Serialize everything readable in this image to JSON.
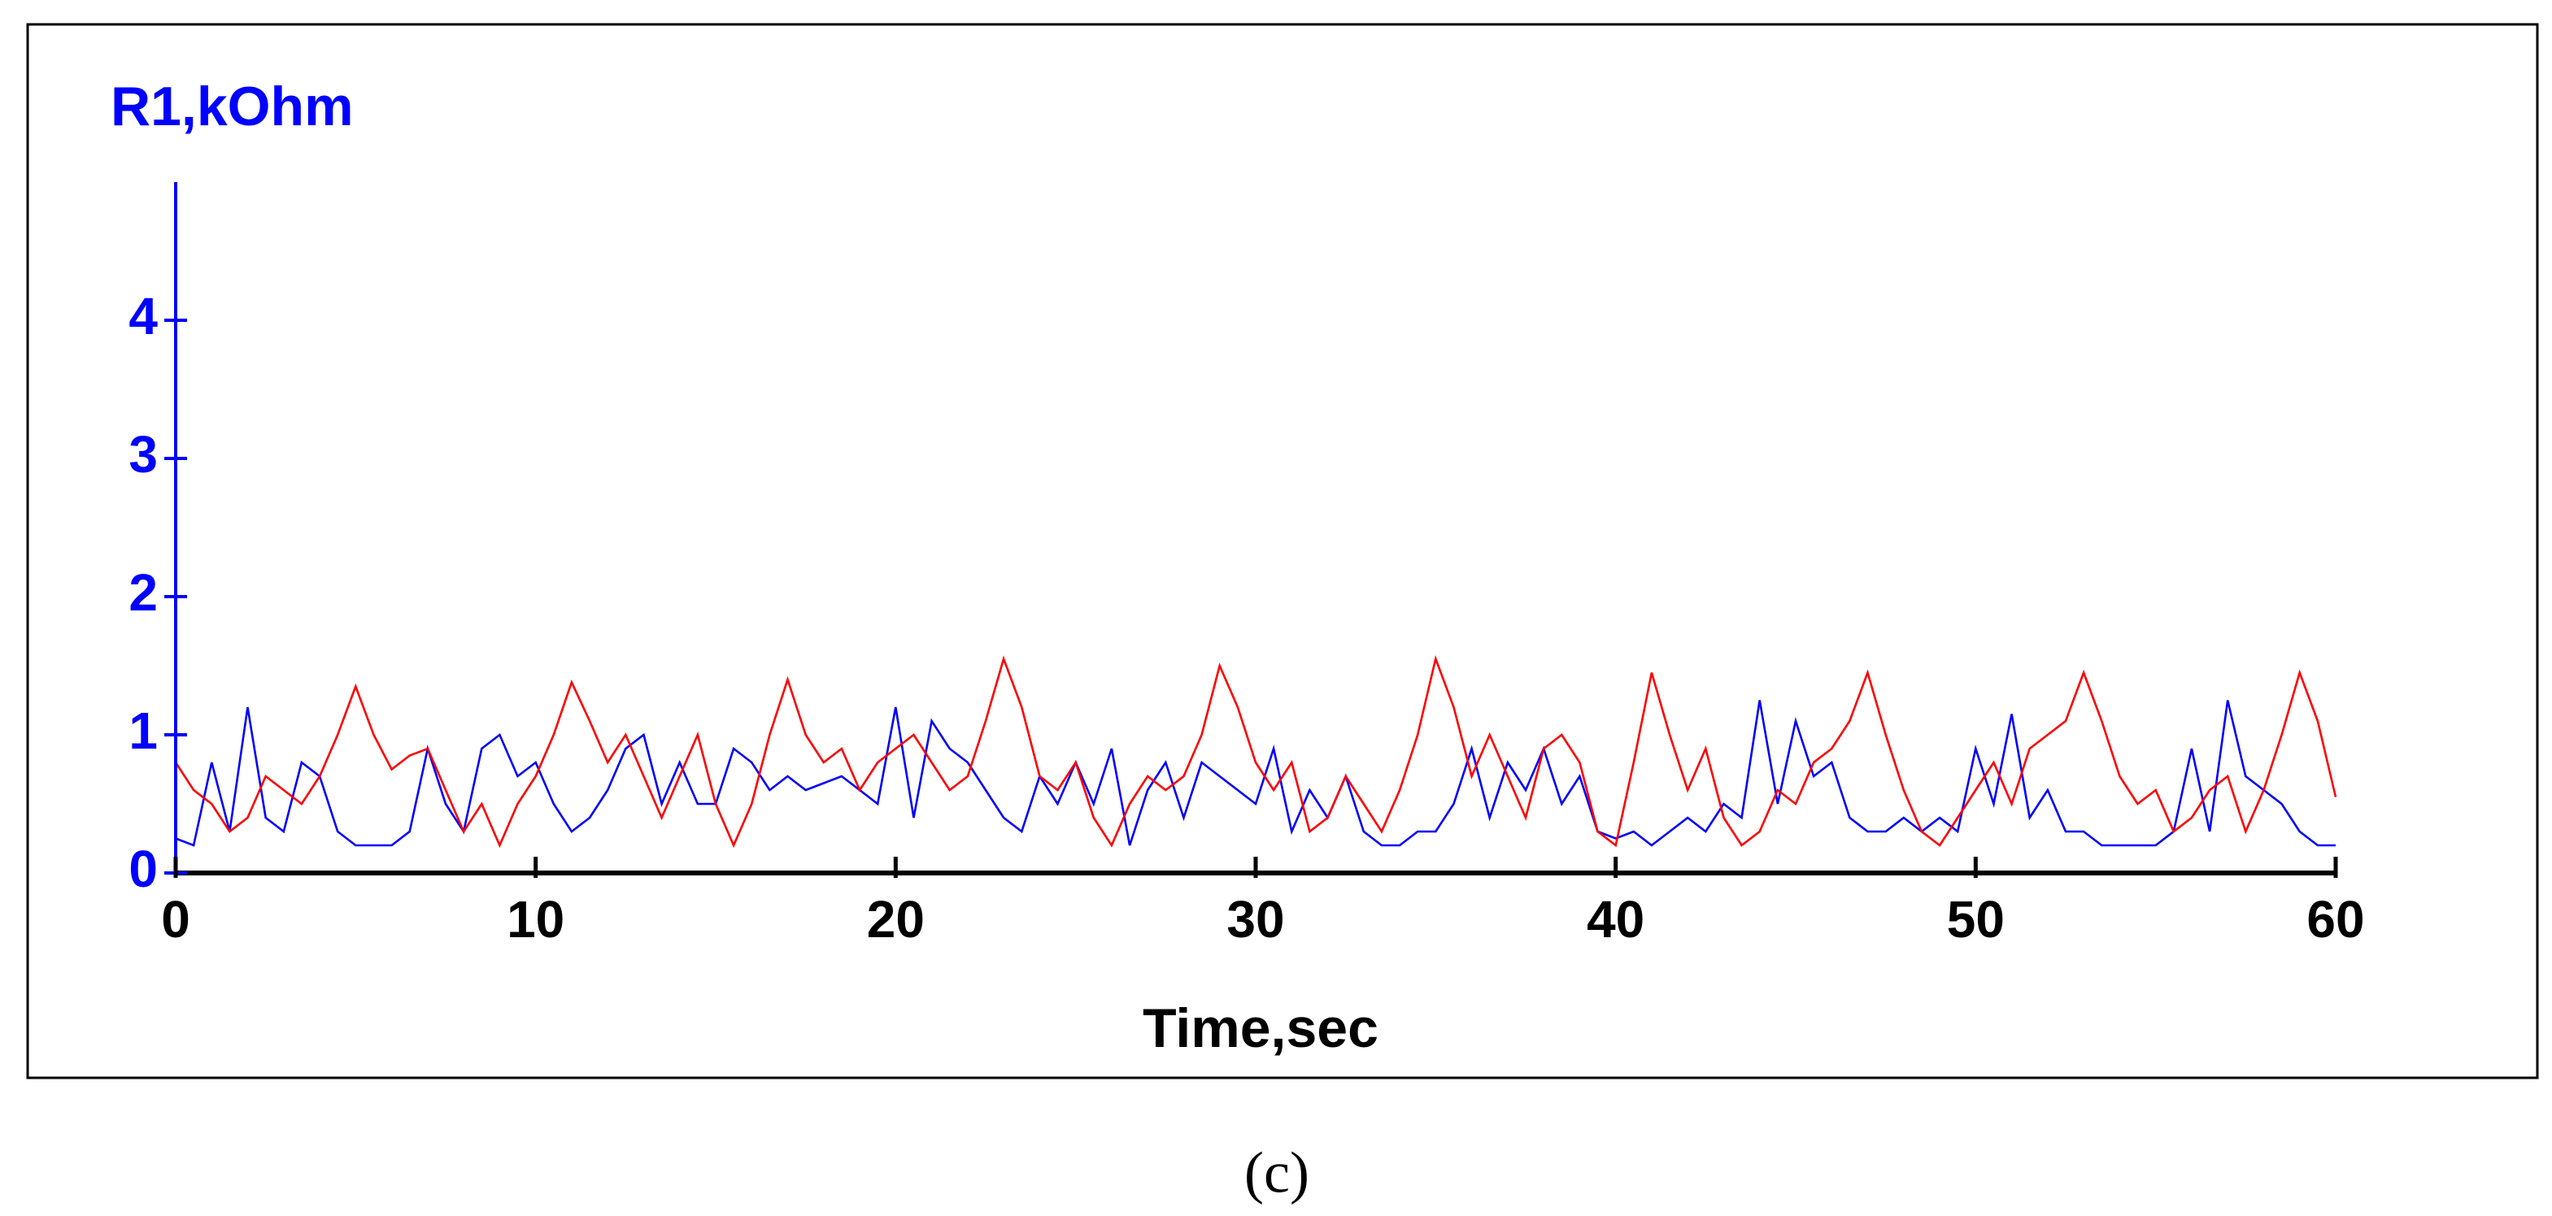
{
  "chart_data": {
    "type": "line",
    "ylabel": "R1,kOhm",
    "xlabel": "Time,sec",
    "caption": "(c)",
    "xlim": [
      0,
      60
    ],
    "xticks": [
      0,
      10,
      20,
      30,
      40,
      50,
      60
    ],
    "ylim": [
      0,
      5
    ],
    "yticks": [
      0,
      1,
      2,
      3,
      4
    ],
    "x": [
      0,
      0.5,
      1,
      1.5,
      2,
      2.5,
      3,
      3.5,
      4,
      4.5,
      5,
      5.5,
      6,
      6.5,
      7,
      7.5,
      8,
      8.5,
      9,
      9.5,
      10,
      10.5,
      11,
      11.5,
      12,
      12.5,
      13,
      13.5,
      14,
      14.5,
      15,
      15.5,
      16,
      16.5,
      17,
      17.5,
      18,
      18.5,
      19,
      19.5,
      20,
      20.5,
      21,
      21.5,
      22,
      22.5,
      23,
      23.5,
      24,
      24.5,
      25,
      25.5,
      26,
      26.5,
      27,
      27.5,
      28,
      28.5,
      29,
      29.5,
      30,
      30.5,
      31,
      31.5,
      32,
      32.5,
      33,
      33.5,
      34,
      34.5,
      35,
      35.5,
      36,
      36.5,
      37,
      37.5,
      38,
      38.5,
      39,
      39.5,
      40,
      40.5,
      41,
      41.5,
      42,
      42.5,
      43,
      43.5,
      44,
      44.5,
      45,
      45.5,
      46,
      46.5,
      47,
      47.5,
      48,
      48.5,
      49,
      49.5,
      50,
      50.5,
      51,
      51.5,
      52,
      52.5,
      53,
      53.5,
      54,
      54.5,
      55,
      55.5,
      56,
      56.5,
      57,
      57.5,
      58,
      58.5,
      59,
      59.5,
      60
    ],
    "series": [
      {
        "color": "#0000ff",
        "values": [
          0.25,
          0.2,
          0.8,
          0.3,
          1.2,
          0.4,
          0.3,
          0.8,
          0.7,
          0.3,
          0.2,
          0.2,
          0.2,
          0.3,
          0.9,
          0.5,
          0.3,
          0.9,
          1.0,
          0.7,
          0.8,
          0.5,
          0.3,
          0.4,
          0.6,
          0.9,
          1.0,
          0.5,
          0.8,
          0.5,
          0.5,
          0.9,
          0.8,
          0.6,
          0.7,
          0.6,
          0.65,
          0.7,
          0.6,
          0.5,
          1.2,
          0.4,
          1.1,
          0.9,
          0.8,
          0.6,
          0.4,
          0.3,
          0.7,
          0.5,
          0.8,
          0.5,
          0.9,
          0.2,
          0.6,
          0.8,
          0.4,
          0.8,
          0.7,
          0.6,
          0.5,
          0.9,
          0.3,
          0.6,
          0.4,
          0.7,
          0.3,
          0.2,
          0.2,
          0.3,
          0.3,
          0.5,
          0.9,
          0.4,
          0.8,
          0.6,
          0.9,
          0.5,
          0.7,
          0.3,
          0.25,
          0.3,
          0.2,
          0.3,
          0.4,
          0.3,
          0.5,
          0.4,
          1.25,
          0.5,
          1.1,
          0.7,
          0.8,
          0.4,
          0.3,
          0.3,
          0.4,
          0.3,
          0.4,
          0.3,
          0.9,
          0.5,
          1.15,
          0.4,
          0.6,
          0.3,
          0.3,
          0.2,
          0.2,
          0.2,
          0.2,
          0.3,
          0.9,
          0.3,
          1.25,
          0.7,
          0.6,
          0.5,
          0.3,
          0.2,
          0.2
        ]
      },
      {
        "color": "#ff0000",
        "values": [
          0.8,
          0.6,
          0.5,
          0.3,
          0.4,
          0.7,
          0.6,
          0.5,
          0.7,
          1.0,
          1.35,
          1.0,
          0.75,
          0.85,
          0.9,
          0.6,
          0.3,
          0.5,
          0.2,
          0.5,
          0.7,
          1.0,
          1.38,
          1.1,
          0.8,
          1.0,
          0.7,
          0.4,
          0.7,
          1.0,
          0.5,
          0.2,
          0.5,
          1.0,
          1.4,
          1.0,
          0.8,
          0.9,
          0.6,
          0.8,
          0.9,
          1.0,
          0.8,
          0.6,
          0.7,
          1.1,
          1.55,
          1.2,
          0.7,
          0.6,
          0.8,
          0.4,
          0.2,
          0.5,
          0.7,
          0.6,
          0.7,
          1.0,
          1.5,
          1.2,
          0.8,
          0.6,
          0.8,
          0.3,
          0.4,
          0.7,
          0.5,
          0.3,
          0.6,
          1.0,
          1.55,
          1.2,
          0.7,
          1.0,
          0.7,
          0.4,
          0.9,
          1.0,
          0.8,
          0.3,
          0.2,
          0.8,
          1.45,
          1.0,
          0.6,
          0.9,
          0.4,
          0.2,
          0.3,
          0.6,
          0.5,
          0.8,
          0.9,
          1.1,
          1.45,
          1.0,
          0.6,
          0.3,
          0.2,
          0.4,
          0.6,
          0.8,
          0.5,
          0.9,
          1.0,
          1.1,
          1.45,
          1.1,
          0.7,
          0.5,
          0.6,
          0.3,
          0.4,
          0.6,
          0.7,
          0.3,
          0.6,
          1.0,
          1.45,
          1.1,
          0.55
        ]
      }
    ]
  }
}
